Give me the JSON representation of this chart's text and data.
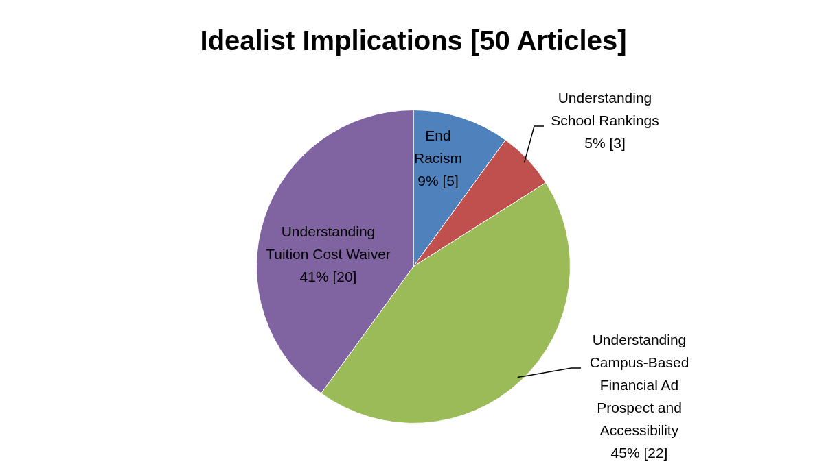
{
  "chart_data": {
    "type": "pie",
    "title": "Idealist Implications [50 Articles]",
    "categories": [
      "End Racism",
      "Understanding School Rankings",
      "Understanding Campus-Based Financial Ad Prospect and Accessibility",
      "Understanding Tuition Cost Waiver"
    ],
    "values": [
      5,
      3,
      22,
      20
    ],
    "value_labels": [
      "9% [5]",
      "5% [3]",
      "45% [22]",
      "41% [20]"
    ],
    "colors": [
      "#4f81bd",
      "#c0504d",
      "#9bbb59",
      "#8064a2"
    ],
    "legend": false
  }
}
